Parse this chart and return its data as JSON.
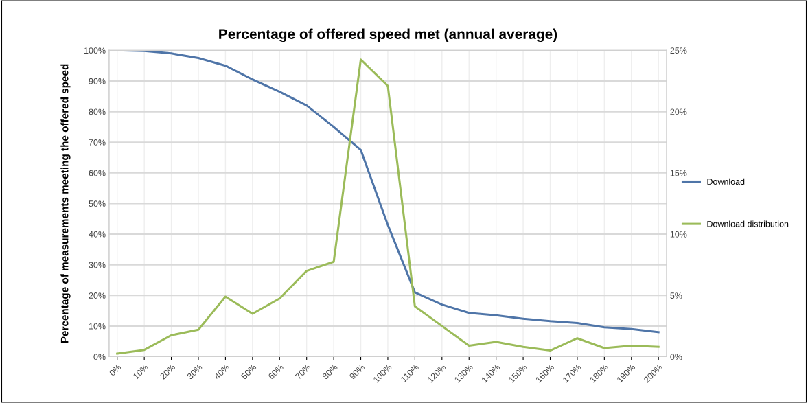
{
  "chart_data": {
    "type": "line",
    "title": "Percentage of offered speed met (annual average)",
    "ylabel": "Percentage of measurements meeting the offered speed",
    "categories": [
      "0%",
      "10%",
      "20%",
      "30%",
      "40%",
      "50%",
      "60%",
      "70%",
      "80%",
      "90%",
      "100%",
      "110%",
      "120%",
      "130%",
      "140%",
      "150%",
      "160%",
      "170%",
      "180%",
      "190%",
      "200%"
    ],
    "series": [
      {
        "name": "Download",
        "color": "#4f75a8",
        "values": [
          100,
          99.8,
          99,
          97.5,
          95,
          90.5,
          86.5,
          82,
          75,
          67.5,
          43,
          21,
          17,
          14.3,
          13.5,
          12.4,
          11.6,
          11,
          9.6,
          9,
          8
        ]
      },
      {
        "name": "Download distribution",
        "color": "#9bbb59",
        "axis": "y2",
        "values": [
          0.25,
          0.55,
          1.75,
          2.2,
          4.9,
          3.5,
          4.75,
          7,
          7.75,
          24.25,
          22.1,
          4.1,
          2.5,
          0.9,
          1.2,
          0.8,
          0.5,
          1.5,
          0.7,
          0.9,
          0.8
        ]
      }
    ],
    "ylim": [
      0,
      100
    ],
    "yticks": [
      {
        "value": 0,
        "label": "0%"
      },
      {
        "value": 10,
        "label": "10%"
      },
      {
        "value": 20,
        "label": "20%"
      },
      {
        "value": 30,
        "label": "30%"
      },
      {
        "value": 40,
        "label": "40%"
      },
      {
        "value": 50,
        "label": "50%"
      },
      {
        "value": 60,
        "label": "60%"
      },
      {
        "value": 70,
        "label": "70%"
      },
      {
        "value": 80,
        "label": "80%"
      },
      {
        "value": 90,
        "label": "90%"
      },
      {
        "value": 100,
        "label": "100%"
      }
    ],
    "y2lim": [
      0,
      25
    ],
    "y2ticks": [
      {
        "value": 0,
        "label": "0%"
      },
      {
        "value": 5,
        "label": "5%"
      },
      {
        "value": 10,
        "label": "10%"
      },
      {
        "value": 15,
        "label": "15%"
      },
      {
        "value": 20,
        "label": "20%"
      },
      {
        "value": 25,
        "label": "25%"
      }
    ],
    "grid": true,
    "legend": "right",
    "marker": "none",
    "line_style": "solid"
  }
}
